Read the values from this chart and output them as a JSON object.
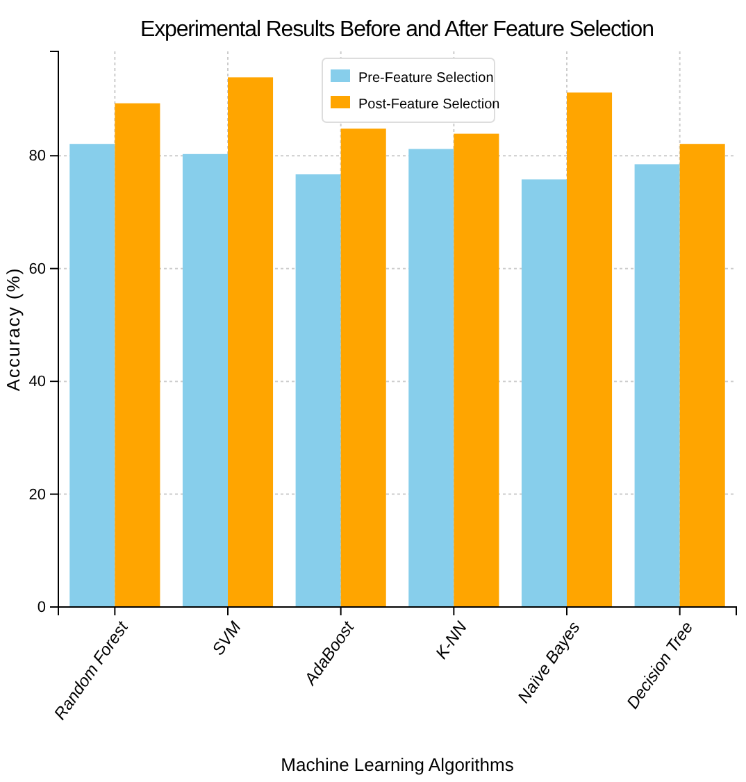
{
  "chart_data": {
    "type": "bar",
    "title": "Experimental Results Before and After Feature Selection",
    "xlabel": "Machine Learning Algorithms",
    "ylabel": "Accuracy (%)",
    "categories": [
      "Random Forest",
      "SVM",
      "AdaBoost",
      "K-NN",
      "Naïve Bayes",
      "Decision Tree"
    ],
    "series": [
      {
        "name": "Pre-Feature Selection",
        "color": "#87ceeb",
        "values": [
          82.1,
          80.3,
          76.7,
          81.2,
          75.8,
          78.5
        ]
      },
      {
        "name": "Post-Feature Selection",
        "color": "#ffa500",
        "values": [
          89.3,
          93.9,
          84.8,
          83.9,
          91.2,
          82.1
        ]
      }
    ],
    "ylim": [
      0,
      98.5
    ],
    "yticks": [
      0,
      20,
      40,
      60,
      80
    ],
    "grid": true,
    "legend": "top"
  }
}
